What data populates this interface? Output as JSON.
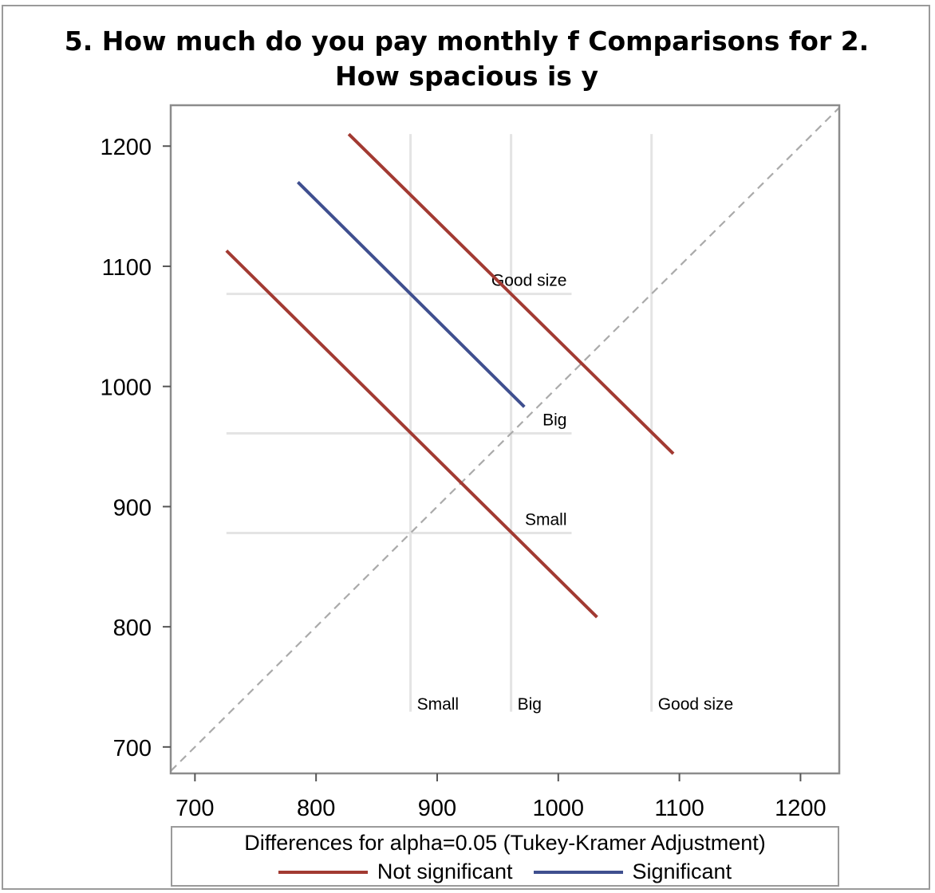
{
  "chart_data": {
    "type": "line",
    "title": "5. How much do you pay monthly f Comparisons for 2. How spacious is y",
    "xlim": [
      680,
      1232
    ],
    "ylim": [
      678,
      1234
    ],
    "x_ticks": [
      700,
      800,
      900,
      1000,
      1100,
      1200
    ],
    "y_ticks": [
      700,
      800,
      900,
      1000,
      1100,
      1200
    ],
    "reference_line": {
      "type": "diagonal",
      "style": "dashed",
      "color": "#aaaaaa"
    },
    "group_means": [
      {
        "label": "Small",
        "value": 878
      },
      {
        "label": "Big",
        "value": 961
      },
      {
        "label": "Good size",
        "value": 1077
      }
    ],
    "group_line_range": {
      "x": [
        726,
        1011
      ],
      "y": [
        724,
        1210
      ]
    },
    "series": [
      {
        "name": "Not significant",
        "color": "#a23a32",
        "x": [
          726,
          1032
        ],
        "y": [
          1113,
          808
        ]
      },
      {
        "name": "Significant",
        "color": "#3f4f8f",
        "x": [
          785,
          972
        ],
        "y": [
          1170,
          983
        ]
      },
      {
        "name": "Not significant",
        "color": "#a23a32",
        "x": [
          827,
          1095
        ],
        "y": [
          1210,
          944
        ]
      }
    ],
    "legend": {
      "title": "Differences for alpha=0.05 (Tukey-Kramer Adjustment)",
      "items": [
        {
          "label": "Not significant",
          "color": "#a23a32"
        },
        {
          "label": "Significant",
          "color": "#3f4f8f"
        }
      ]
    }
  }
}
